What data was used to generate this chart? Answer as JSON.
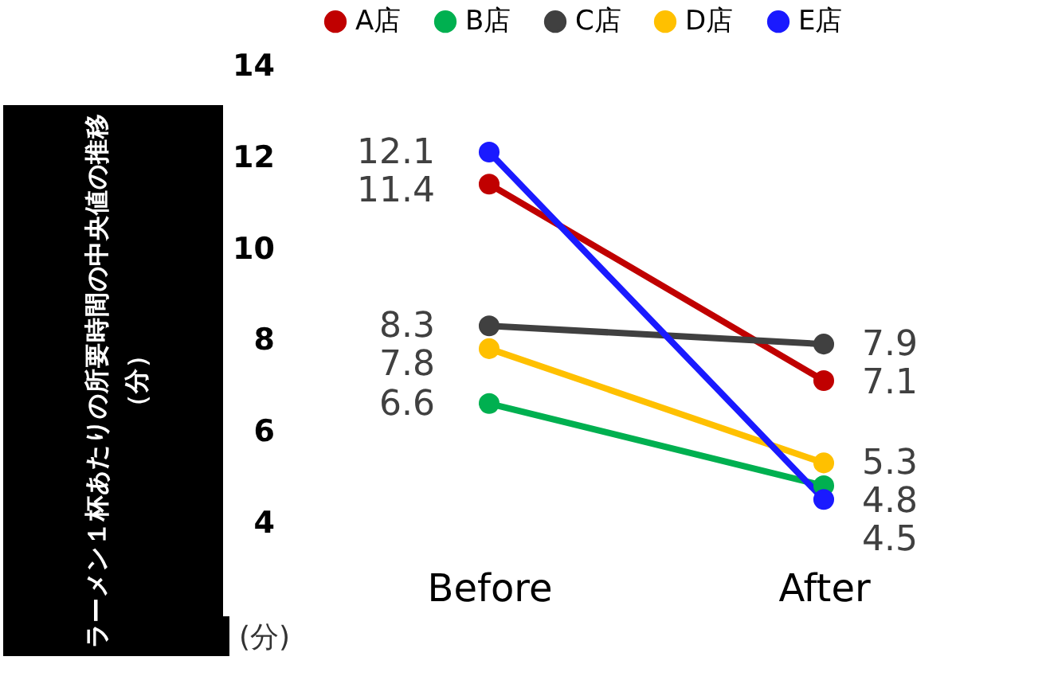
{
  "chart_data": {
    "type": "line",
    "ylabel": "ラーメン１杯あたりの所要時間の中央値の推移（分）",
    "annotations": [
      "(分)"
    ],
    "categories": [
      "Before",
      "After"
    ],
    "series": [
      {
        "name": "A店",
        "color": "#c00000",
        "values": [
          11.4,
          7.1
        ]
      },
      {
        "name": "B店",
        "color": "#00b050",
        "values": [
          6.6,
          4.8
        ]
      },
      {
        "name": "C店",
        "color": "#404040",
        "values": [
          8.3,
          7.9
        ]
      },
      {
        "name": "D店",
        "color": "#ffc000",
        "values": [
          7.8,
          5.3
        ]
      },
      {
        "name": "E店",
        "color": "#1a1aff",
        "values": [
          12.1,
          4.5
        ]
      }
    ],
    "ylim": [
      4,
      14
    ],
    "yticks": [
      4,
      6,
      8,
      10,
      12,
      14
    ],
    "data_labels": true,
    "legend": "top",
    "marker": "circle"
  }
}
